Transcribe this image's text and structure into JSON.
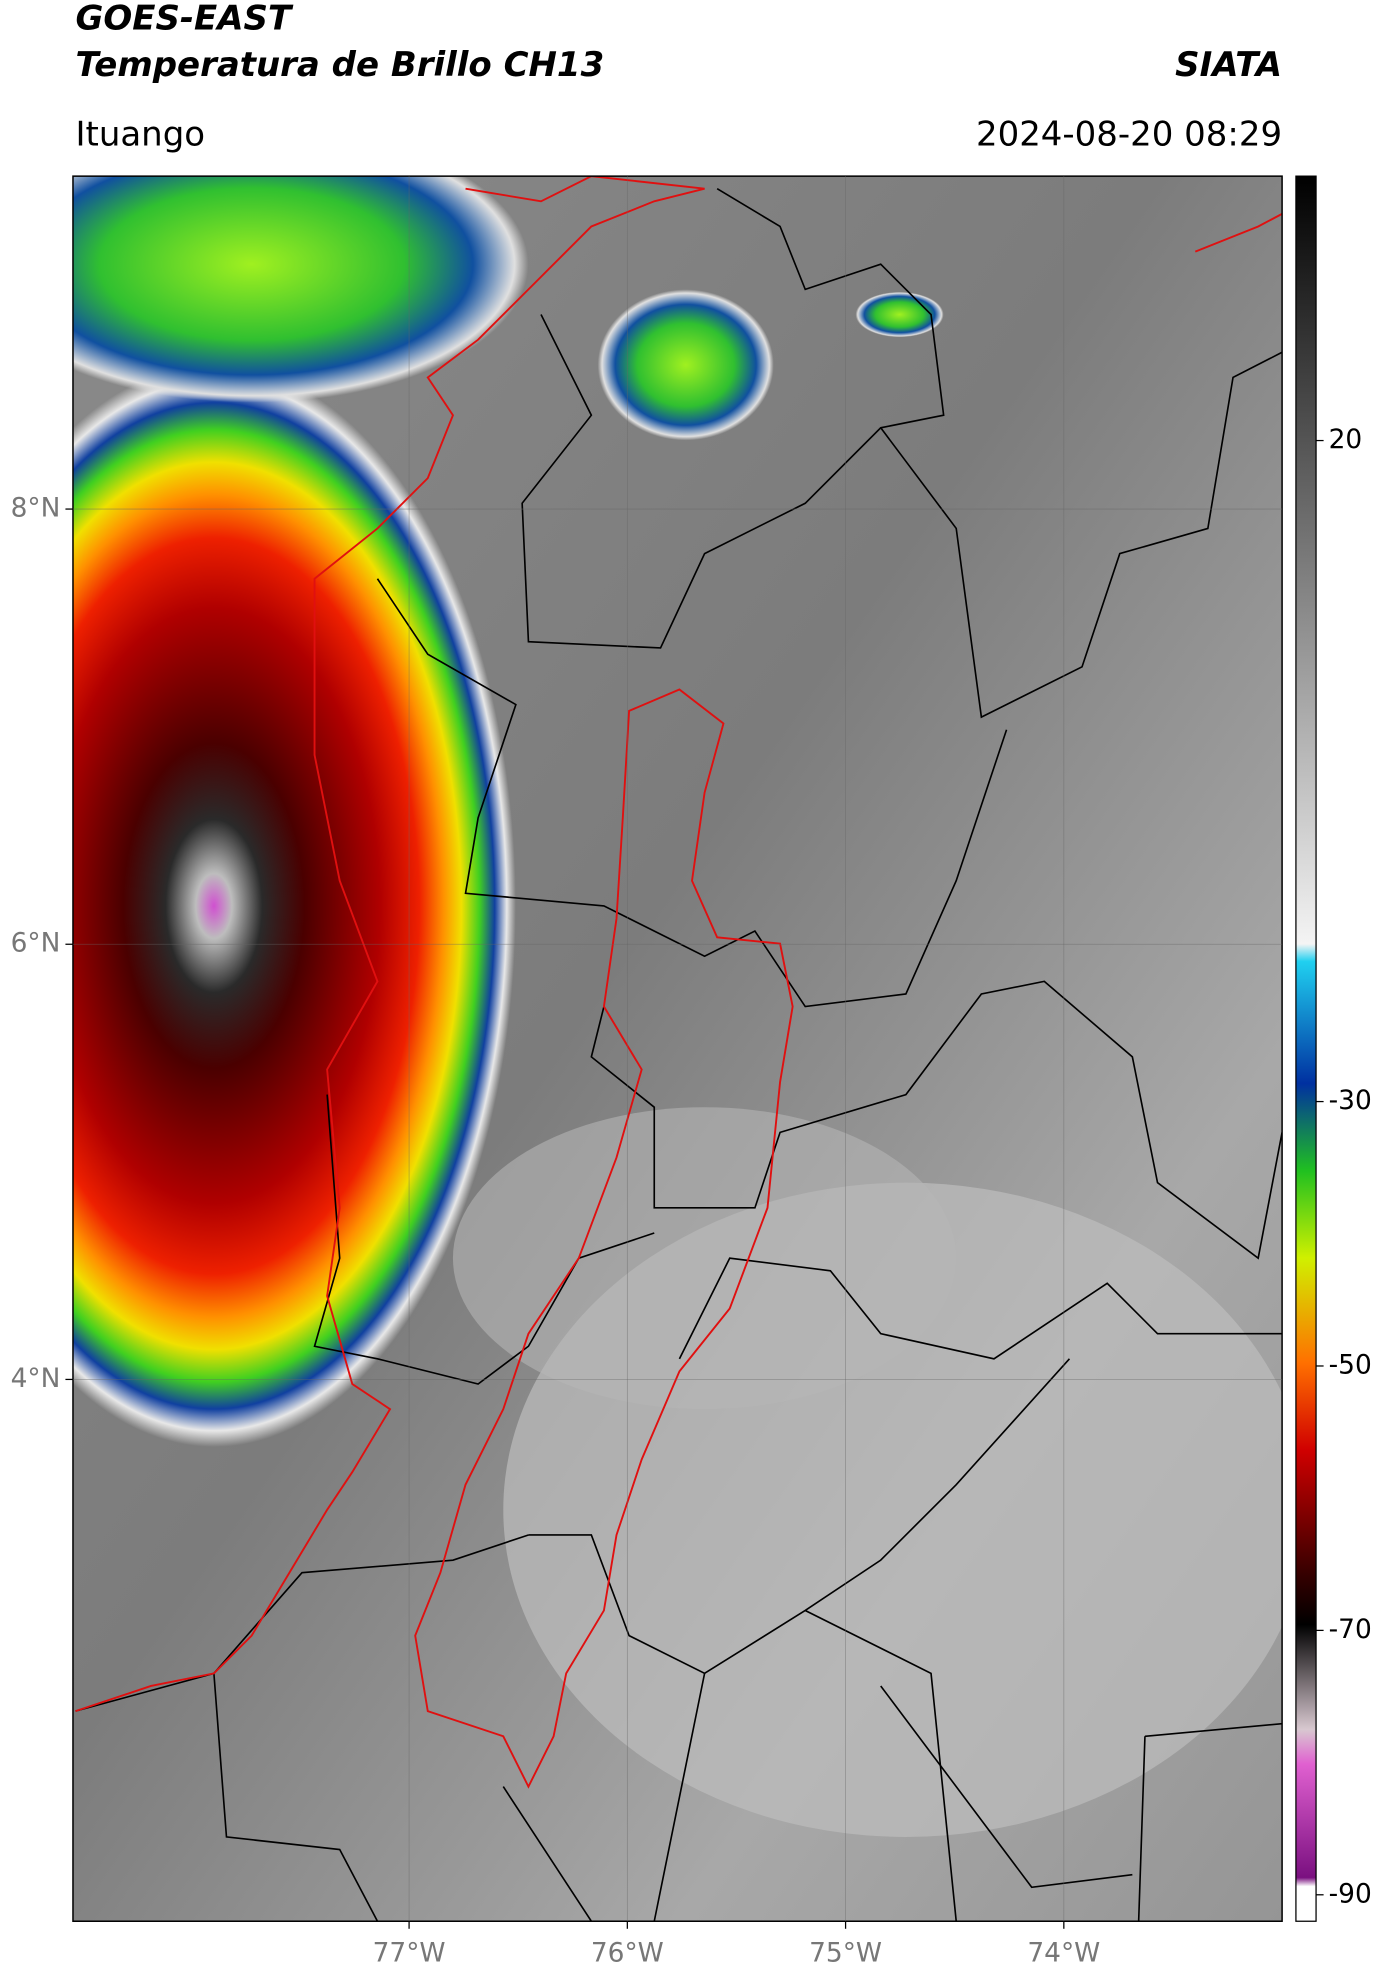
{
  "header": {
    "title": "GOES-EAST",
    "subtitle": "Temperatura de Brillo CH13",
    "agency": "SIATA",
    "location": "Ituango",
    "timestamp": "2024-08-20 08:29"
  },
  "map": {
    "lon_lim": [
      -78.54,
      -73.0
    ],
    "lat_lim": [
      1.51,
      9.53
    ],
    "lon_ticks": [
      {
        "value": -77,
        "label": "77°W"
      },
      {
        "value": -76,
        "label": "76°W"
      },
      {
        "value": -75,
        "label": "75°W"
      },
      {
        "value": -74,
        "label": "74°W"
      }
    ],
    "lat_ticks": [
      {
        "value": 8,
        "label": "8°N"
      },
      {
        "value": 6,
        "label": "6°N"
      },
      {
        "value": 4,
        "label": "4°N"
      }
    ]
  },
  "colorbar": {
    "lim": [
      -92,
      40
    ],
    "ticks": [
      20,
      -30,
      -50,
      -70,
      -90
    ]
  }
}
